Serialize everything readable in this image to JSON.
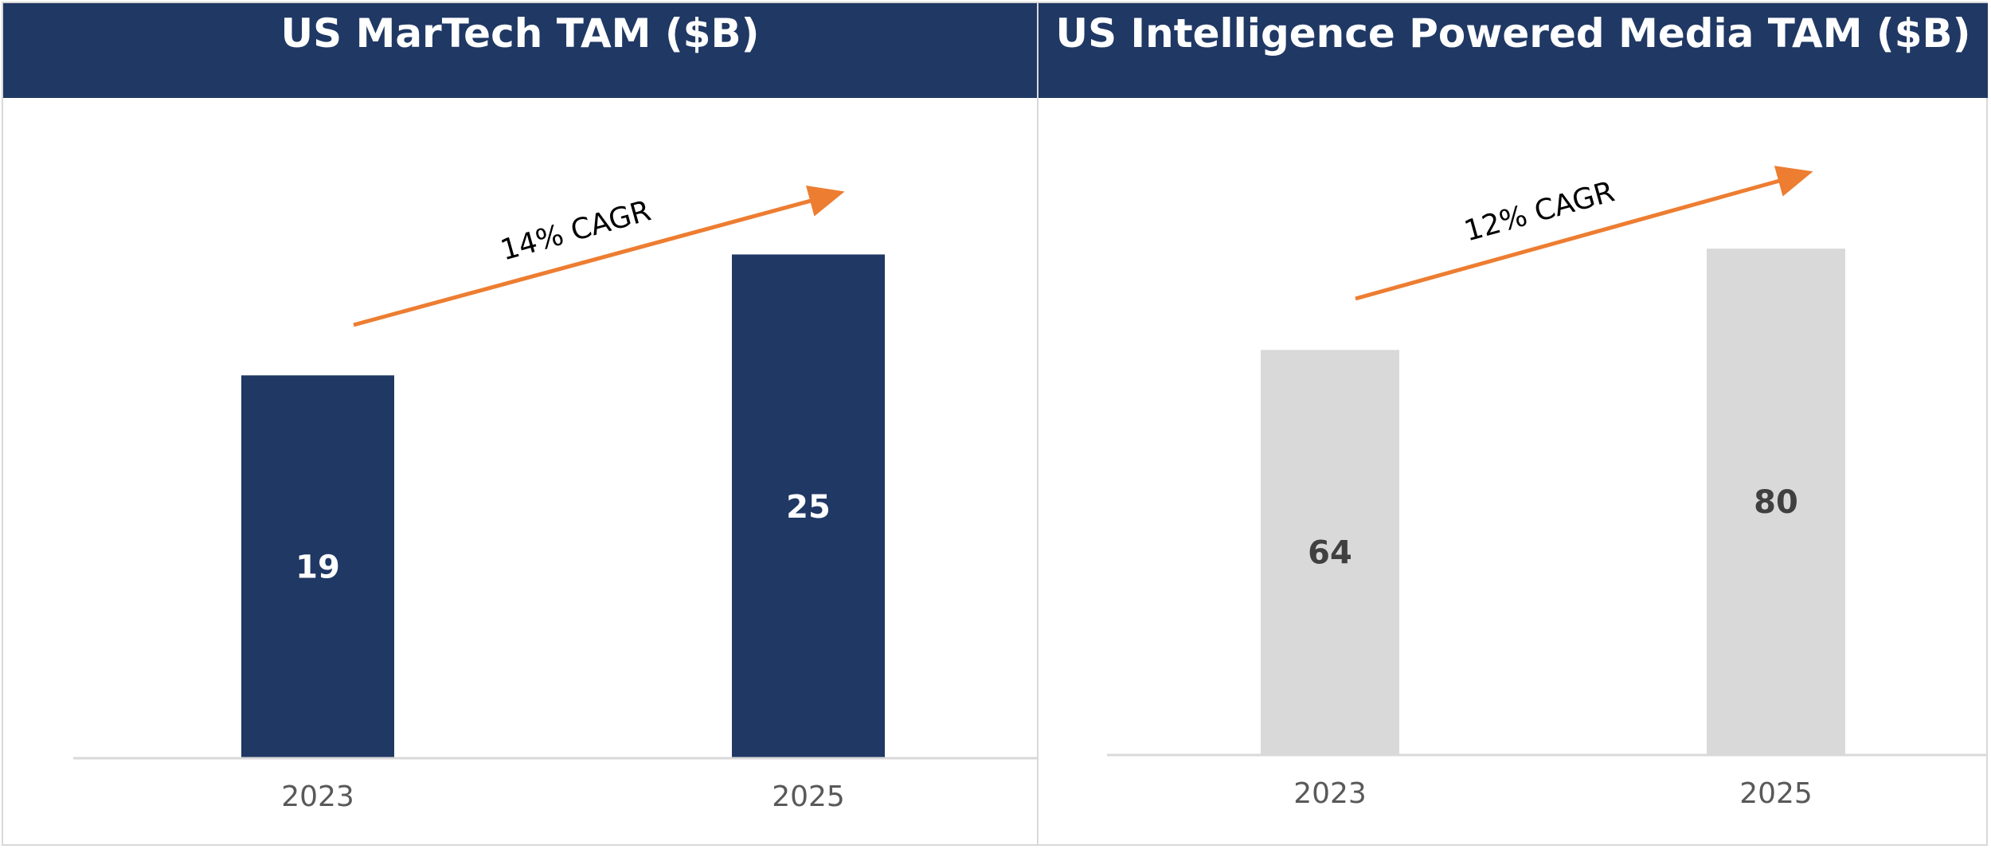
{
  "chart_data": [
    {
      "type": "bar",
      "title": "US MarTech TAM ($B)",
      "categories": [
        "2023",
        "2025"
      ],
      "values": [
        19,
        25
      ],
      "ylim": [
        0,
        30
      ],
      "bar_color": "#203864",
      "label_color": "#ffffff",
      "annotation": "14% CAGR",
      "annotation_color": "#ed7d31",
      "xlabel": "",
      "ylabel": ""
    },
    {
      "type": "bar",
      "title": "US Intelligence Powered Media TAM ($B)",
      "categories": [
        "2023",
        "2025"
      ],
      "values": [
        64,
        80
      ],
      "ylim": [
        0,
        95
      ],
      "bar_color": "#d9d9d9",
      "label_color": "#404040",
      "annotation": "12% CAGR",
      "annotation_color": "#ed7d31",
      "xlabel": "",
      "ylabel": ""
    }
  ],
  "colors": {
    "header_bg": "#203864",
    "axis": "#d9d9d9",
    "tick_text": "#595959"
  }
}
